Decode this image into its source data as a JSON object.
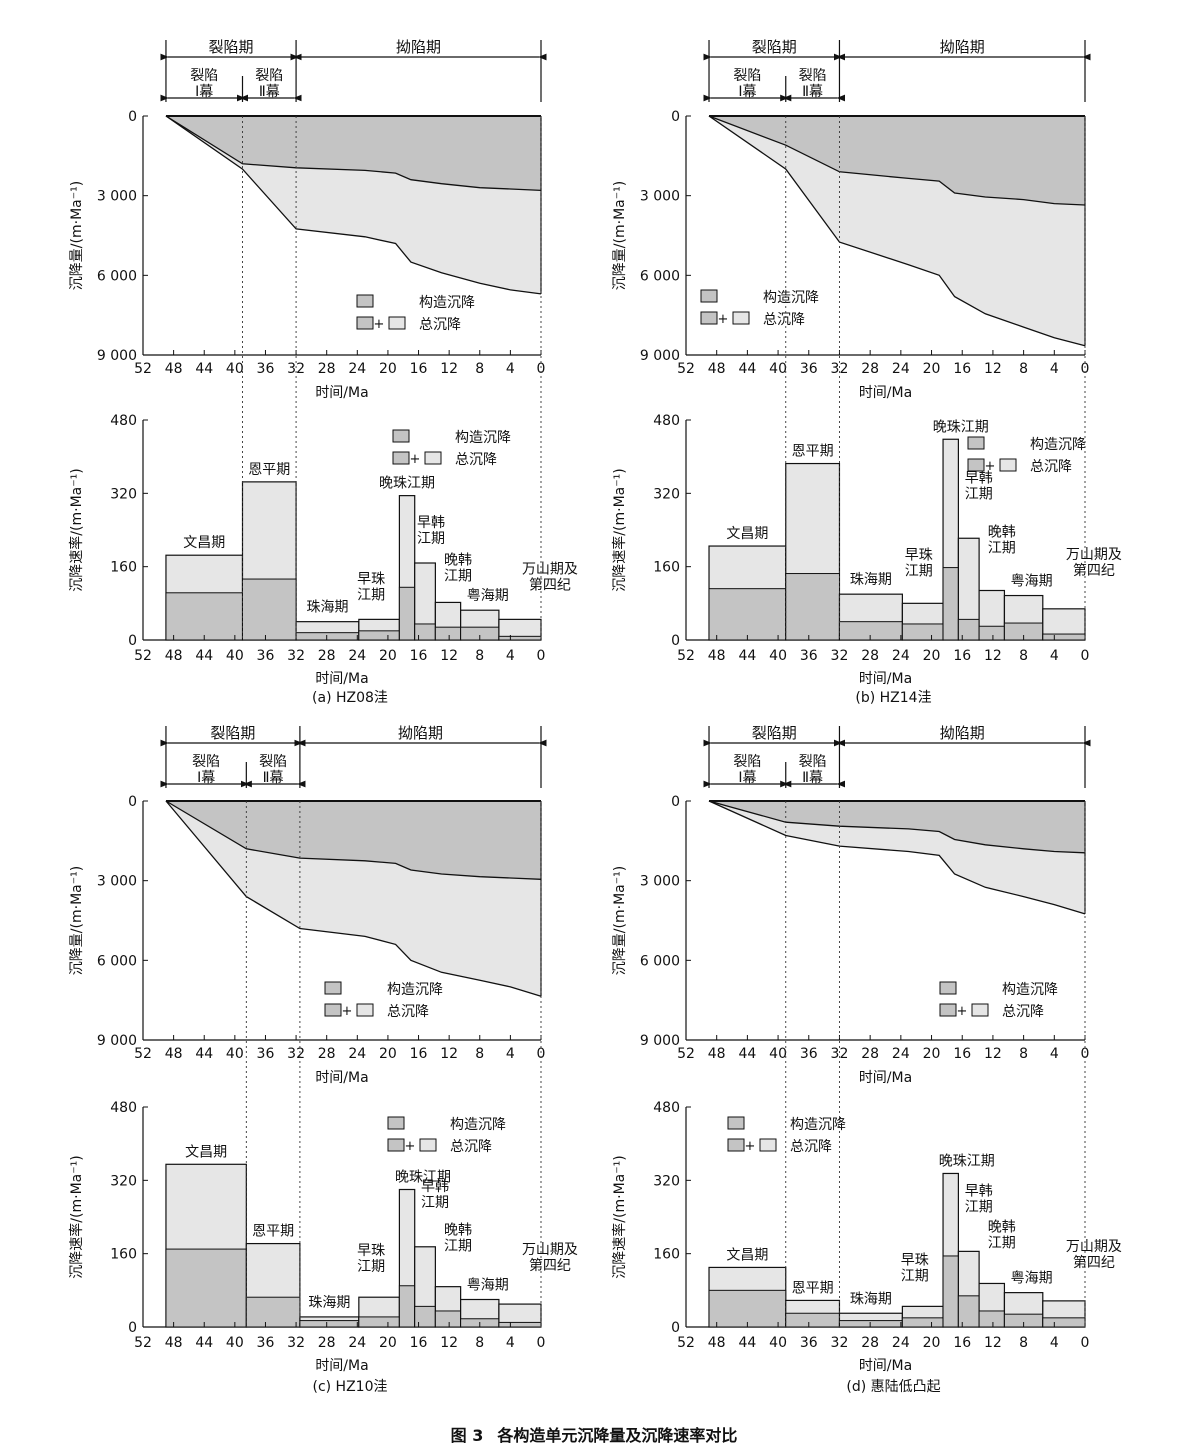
{
  "figure": {
    "number": "图 3",
    "caption": "各构造单元沉降量及沉降速率对比"
  },
  "labels": {
    "rift_period": "裂陷期",
    "depression_period": "拗陷期",
    "rift_act_1": [
      "裂陷",
      "Ⅰ幕"
    ],
    "rift_act_2": [
      "裂陷",
      "Ⅱ幕"
    ],
    "amount_ylabel": "沉降量/(m·Ma⁻¹)",
    "rate_ylabel": "沉降速率/(m·Ma⁻¹)",
    "xlabel": "时间/Ma",
    "legend_tectonic": "构造沉降",
    "legend_plus": "+",
    "legend_total": "总沉降"
  },
  "colors": {
    "tectonic": "#c4c4c4",
    "total": "#e6e6e6",
    "line": "#111111"
  },
  "chart_data": [
    {
      "panel": "(a)",
      "name": "HZ08洼",
      "boundaries": {
        "rift_start": 49,
        "act_boundary": 39,
        "rift_end": 32,
        "end": 0
      },
      "amount": {
        "type": "area",
        "xlabel": "时间/Ma",
        "ylabel": "沉降量/(m·Ma⁻¹)",
        "xlim": [
          52,
          0
        ],
        "ylim": [
          0,
          9000
        ],
        "xticks": [
          52,
          48,
          44,
          40,
          36,
          32,
          28,
          24,
          20,
          16,
          12,
          8,
          4,
          0
        ],
        "yticks": [
          0,
          3000,
          6000,
          9000
        ],
        "ytick_labels": [
          "0",
          "3 000",
          "6 000",
          "9 000"
        ],
        "legend": "center-right",
        "series": [
          {
            "name": "构造沉降",
            "x": [
              49,
              39,
              32,
              23,
              19,
              17,
              13,
              8,
              4,
              0
            ],
            "y": [
              0,
              1800,
              1950,
              2050,
              2150,
              2400,
              2550,
              2700,
              2750,
              2800
            ]
          },
          {
            "name": "总沉降",
            "x": [
              49,
              39,
              32,
              23,
              19,
              17,
              13,
              8,
              4,
              0
            ],
            "y": [
              0,
              2000,
              4250,
              4550,
              4800,
              5500,
              5900,
              6300,
              6550,
              6700
            ]
          }
        ]
      },
      "rate": {
        "type": "bar",
        "xlabel": "时间/Ma",
        "ylabel": "沉降速率/(m·Ma⁻¹)",
        "xlim": [
          52,
          0
        ],
        "ylim": [
          0,
          480
        ],
        "xticks": [
          52,
          48,
          44,
          40,
          36,
          32,
          28,
          24,
          20,
          16,
          12,
          8,
          4,
          0
        ],
        "yticks": [
          0,
          160,
          320,
          480
        ],
        "legend": "top-right",
        "stages": [
          {
            "name": "文昌期",
            "from": 49,
            "to": 39,
            "total": 185,
            "tectonic": 103
          },
          {
            "name": "恩平期",
            "from": 39,
            "to": 32,
            "total": 345,
            "tectonic": 133
          },
          {
            "name": "珠海期",
            "from": 32,
            "to": 23.8,
            "total": 40,
            "tectonic": 16
          },
          {
            "name": "早珠江期",
            "from": 23.8,
            "to": 18.5,
            "total": 45,
            "tectonic": 20
          },
          {
            "name": "晚珠江期",
            "from": 18.5,
            "to": 16.5,
            "total": 315,
            "tectonic": 115
          },
          {
            "name": "早韩江期",
            "from": 16.5,
            "to": 13.8,
            "total": 168,
            "tectonic": 35
          },
          {
            "name": "晚韩江期",
            "from": 13.8,
            "to": 10.5,
            "total": 82,
            "tectonic": 28
          },
          {
            "name": "粤海期",
            "from": 10.5,
            "to": 5.5,
            "total": 65,
            "tectonic": 28
          },
          {
            "name": "万山期及第四纪",
            "from": 5.5,
            "to": 0,
            "total": 45,
            "tectonic": 8
          }
        ]
      }
    },
    {
      "panel": "(b)",
      "name": "HZ14洼",
      "boundaries": {
        "rift_start": 49,
        "act_boundary": 39,
        "rift_end": 32,
        "end": 0
      },
      "amount": {
        "type": "area",
        "xlabel": "时间/Ma",
        "ylabel": "沉降量/(m·Ma⁻¹)",
        "xlim": [
          52,
          0
        ],
        "ylim": [
          0,
          9000
        ],
        "xticks": [
          52,
          48,
          44,
          40,
          36,
          32,
          28,
          24,
          20,
          16,
          12,
          8,
          4,
          0
        ],
        "yticks": [
          0,
          3000,
          6000,
          9000
        ],
        "ytick_labels": [
          "0",
          "3 000",
          "6 000",
          "9 000"
        ],
        "legend": "center-left",
        "series": [
          {
            "name": "构造沉降",
            "x": [
              49,
              39,
              32,
              23,
              19,
              17,
              13,
              8,
              4,
              0
            ],
            "y": [
              0,
              1100,
              2100,
              2350,
              2450,
              2900,
              3050,
              3150,
              3300,
              3350
            ]
          },
          {
            "name": "总沉降",
            "x": [
              49,
              39,
              32,
              23,
              19,
              17,
              13,
              8,
              4,
              0
            ],
            "y": [
              0,
              2000,
              4750,
              5600,
              6000,
              6800,
              7450,
              7950,
              8350,
              8650
            ]
          }
        ]
      },
      "rate": {
        "type": "bar",
        "xlabel": "时间/Ma",
        "ylabel": "沉降速率/(m·Ma⁻¹)",
        "xlim": [
          52,
          0
        ],
        "ylim": [
          0,
          480
        ],
        "xticks": [
          52,
          48,
          44,
          40,
          36,
          32,
          28,
          24,
          20,
          16,
          12,
          8,
          4,
          0
        ],
        "yticks": [
          0,
          160,
          320,
          480
        ],
        "legend": "top-right",
        "stages": [
          {
            "name": "文昌期",
            "from": 49,
            "to": 39,
            "total": 205,
            "tectonic": 112
          },
          {
            "name": "恩平期",
            "from": 39,
            "to": 32,
            "total": 385,
            "tectonic": 145
          },
          {
            "name": "珠海期",
            "from": 32,
            "to": 23.8,
            "total": 100,
            "tectonic": 40
          },
          {
            "name": "早珠江期",
            "from": 23.8,
            "to": 18.5,
            "total": 80,
            "tectonic": 35
          },
          {
            "name": "晚珠江期",
            "from": 18.5,
            "to": 16.5,
            "total": 438,
            "tectonic": 158
          },
          {
            "name": "早韩江期",
            "from": 16.5,
            "to": 13.8,
            "total": 222,
            "tectonic": 45
          },
          {
            "name": "晚韩江期",
            "from": 13.8,
            "to": 10.5,
            "total": 108,
            "tectonic": 30
          },
          {
            "name": "粤海期",
            "from": 10.5,
            "to": 5.5,
            "total": 97,
            "tectonic": 37
          },
          {
            "name": "万山期及第四纪",
            "from": 5.5,
            "to": 0,
            "total": 68,
            "tectonic": 13
          }
        ]
      }
    },
    {
      "panel": "(c)",
      "name": "HZ10洼",
      "boundaries": {
        "rift_start": 49,
        "act_boundary": 38.5,
        "rift_end": 31.5,
        "end": 0
      },
      "amount": {
        "type": "area",
        "xlabel": "时间/Ma",
        "ylabel": "沉降量/(m·Ma⁻¹)",
        "xlim": [
          52,
          0
        ],
        "ylim": [
          0,
          9000
        ],
        "xticks": [
          52,
          48,
          44,
          40,
          36,
          32,
          28,
          24,
          20,
          16,
          12,
          8,
          4,
          0
        ],
        "yticks": [
          0,
          3000,
          6000,
          9000
        ],
        "ytick_labels": [
          "0",
          "3 000",
          "6 000",
          "9 000"
        ],
        "legend": "center-left",
        "series": [
          {
            "name": "构造沉降",
            "x": [
              49,
              38.5,
              31.5,
              23,
              19,
              17,
              13,
              8,
              4,
              0
            ],
            "y": [
              0,
              1800,
              2150,
              2250,
              2350,
              2600,
              2750,
              2850,
              2900,
              2950
            ]
          },
          {
            "name": "总沉降",
            "x": [
              49,
              38.5,
              31.5,
              23,
              19,
              17,
              13,
              8,
              4,
              0
            ],
            "y": [
              0,
              3600,
              4800,
              5100,
              5400,
              6000,
              6450,
              6750,
              7000,
              7350
            ]
          }
        ]
      },
      "rate": {
        "type": "bar",
        "xlabel": "时间/Ma",
        "ylabel": "沉降速率/(m·Ma⁻¹)",
        "xlim": [
          52,
          0
        ],
        "ylim": [
          0,
          480
        ],
        "xticks": [
          52,
          48,
          44,
          40,
          36,
          32,
          28,
          24,
          20,
          16,
          12,
          8,
          4,
          0
        ],
        "yticks": [
          0,
          160,
          320,
          480
        ],
        "legend": "top-right",
        "stages": [
          {
            "name": "文昌期",
            "from": 49,
            "to": 38.5,
            "total": 355,
            "tectonic": 170
          },
          {
            "name": "恩平期",
            "from": 38.5,
            "to": 31.5,
            "total": 182,
            "tectonic": 65
          },
          {
            "name": "珠海期",
            "from": 31.5,
            "to": 23.8,
            "total": 22,
            "tectonic": 14
          },
          {
            "name": "早珠江期",
            "from": 23.8,
            "to": 18.5,
            "total": 65,
            "tectonic": 22
          },
          {
            "name": "晚珠江期",
            "from": 18.5,
            "to": 16.5,
            "total": 300,
            "tectonic": 90
          },
          {
            "name": "早韩江期",
            "from": 16.5,
            "to": 13.8,
            "total": 175,
            "tectonic": 45
          },
          {
            "name": "晚韩江期",
            "from": 13.8,
            "to": 10.5,
            "total": 88,
            "tectonic": 35
          },
          {
            "name": "粤海期",
            "from": 10.5,
            "to": 5.5,
            "total": 60,
            "tectonic": 18
          },
          {
            "name": "万山期及第四纪",
            "from": 5.5,
            "to": 0,
            "total": 50,
            "tectonic": 10
          }
        ]
      }
    },
    {
      "panel": "(d)",
      "name": "惠陆低凸起",
      "boundaries": {
        "rift_start": 49,
        "act_boundary": 39,
        "rift_end": 32,
        "end": 0
      },
      "amount": {
        "type": "area",
        "xlabel": "时间/Ma",
        "ylabel": "沉降量/(m·Ma⁻¹)",
        "xlim": [
          52,
          0
        ],
        "ylim": [
          0,
          9000
        ],
        "xticks": [
          52,
          48,
          44,
          40,
          36,
          32,
          28,
          24,
          20,
          16,
          12,
          8,
          4,
          0
        ],
        "yticks": [
          0,
          3000,
          6000,
          9000
        ],
        "ytick_labels": [
          "0",
          "3 000",
          "6 000",
          "9 000"
        ],
        "legend": "center-right",
        "series": [
          {
            "name": "构造沉降",
            "x": [
              49,
              39,
              32,
              23,
              19,
              17,
              13,
              8,
              4,
              0
            ],
            "y": [
              0,
              800,
              950,
              1050,
              1150,
              1450,
              1650,
              1800,
              1900,
              1950
            ]
          },
          {
            "name": "总沉降",
            "x": [
              49,
              39,
              32,
              23,
              19,
              17,
              13,
              8,
              4,
              0
            ],
            "y": [
              0,
              1300,
              1700,
              1900,
              2050,
              2750,
              3250,
              3600,
              3900,
              4250
            ]
          }
        ]
      },
      "rate": {
        "type": "bar",
        "xlabel": "时间/Ma",
        "ylabel": "沉降速率/(m·Ma⁻¹)",
        "xlim": [
          52,
          0
        ],
        "ylim": [
          0,
          480
        ],
        "xticks": [
          52,
          48,
          44,
          40,
          36,
          32,
          28,
          24,
          20,
          16,
          12,
          8,
          4,
          0
        ],
        "yticks": [
          0,
          160,
          320,
          480
        ],
        "legend": "top-left",
        "stages": [
          {
            "name": "文昌期",
            "from": 49,
            "to": 39,
            "total": 130,
            "tectonic": 80
          },
          {
            "name": "恩平期",
            "from": 39,
            "to": 32,
            "total": 58,
            "tectonic": 30
          },
          {
            "name": "珠海期",
            "from": 32,
            "to": 23.8,
            "total": 30,
            "tectonic": 14
          },
          {
            "name": "早珠江期",
            "from": 23.8,
            "to": 18.5,
            "total": 45,
            "tectonic": 20
          },
          {
            "name": "晚珠江期",
            "from": 18.5,
            "to": 16.5,
            "total": 335,
            "tectonic": 155
          },
          {
            "name": "早韩江期",
            "from": 16.5,
            "to": 13.8,
            "total": 165,
            "tectonic": 68
          },
          {
            "name": "晚韩江期",
            "from": 13.8,
            "to": 10.5,
            "total": 95,
            "tectonic": 35
          },
          {
            "name": "粤海期",
            "from": 10.5,
            "to": 5.5,
            "total": 75,
            "tectonic": 28
          },
          {
            "name": "万山期及第四纪",
            "from": 5.5,
            "to": 0,
            "total": 57,
            "tectonic": 20
          }
        ]
      }
    }
  ]
}
